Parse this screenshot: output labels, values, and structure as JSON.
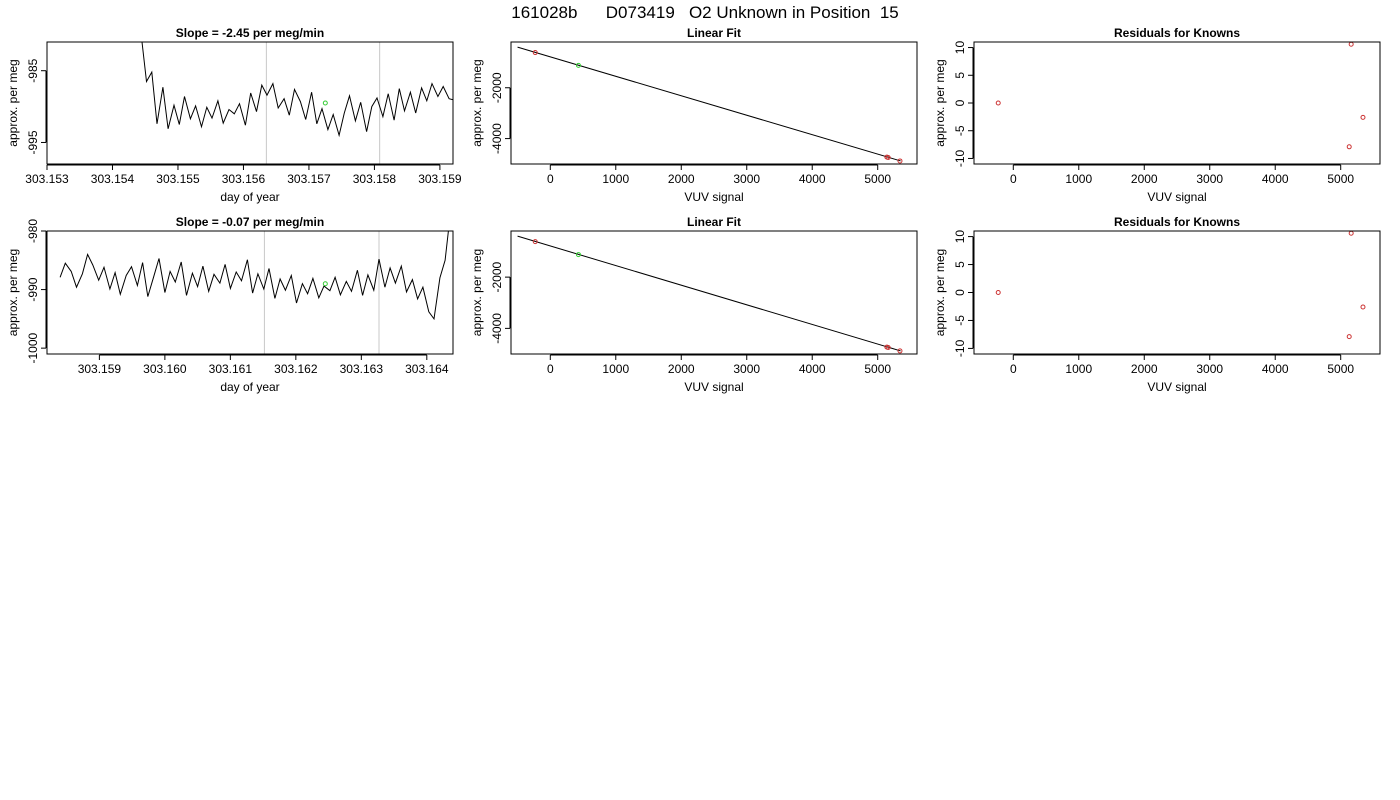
{
  "page_title": "161028b      D073419   O2 Unknown in Position  15",
  "colors": {
    "line": "#000000",
    "marker_known": "#cc3333",
    "marker_unknown": "#33cc33",
    "vline": "#c8c8c8",
    "fit_line": "#000000"
  },
  "chart_data": [
    {
      "type": "line",
      "title": "Slope =  -2.45  per meg/min",
      "xlabel": "day of year",
      "ylabel": "approx. per meg",
      "xlim": [
        303.153,
        303.1592
      ],
      "ylim": [
        -998,
        -981
      ],
      "xticks": [
        303.153,
        303.154,
        303.155,
        303.156,
        303.157,
        303.158,
        303.159
      ],
      "xtick_labels": [
        "303.153",
        "303.154",
        "303.155",
        "303.156",
        "303.157",
        "303.158",
        "303.159"
      ],
      "yticks": [
        -995,
        -985
      ],
      "ytick_labels": [
        "-995",
        "-985"
      ],
      "vlines": [
        303.15635,
        303.15808
      ],
      "series": [
        {
          "x": [
            303.15445,
            303.15452,
            303.1546,
            303.15468,
            303.15477,
            303.15485,
            303.15494,
            303.15502,
            303.1551,
            303.15519,
            303.15527,
            303.15536,
            303.15544,
            303.15552,
            303.15561,
            303.15569,
            303.15578,
            303.15586,
            303.15594,
            303.15603,
            303.15611,
            303.1562,
            303.15628,
            303.15636,
            303.15645,
            303.15653,
            303.15662,
            303.1567,
            303.15678,
            303.15687,
            303.15695,
            303.15704,
            303.15712,
            303.1572,
            303.15729,
            303.15737,
            303.15746,
            303.15754,
            303.15762,
            303.15771,
            303.15779,
            303.15788,
            303.15796,
            303.15804,
            303.15813,
            303.15821,
            303.1583,
            303.15838,
            303.15846,
            303.15855,
            303.15863,
            303.15872,
            303.1588,
            303.15888,
            303.15897,
            303.15905,
            303.15914,
            303.15922
          ],
          "y": [
            -981.0,
            -986.5,
            -985.2,
            -992.4,
            -987.3,
            -993.1,
            -989.8,
            -992.5,
            -988.6,
            -991.7,
            -989.9,
            -992.8,
            -990.1,
            -991.6,
            -989.2,
            -992.3,
            -990.4,
            -991.0,
            -989.6,
            -992.6,
            -988.1,
            -990.7,
            -987.0,
            -988.4,
            -986.8,
            -990.2,
            -988.9,
            -991.2,
            -987.6,
            -989.3,
            -991.8,
            -988.0,
            -992.4,
            -990.3,
            -993.2,
            -991.1,
            -994.0,
            -990.9,
            -988.5,
            -992.0,
            -989.4,
            -993.5,
            -990.0,
            -988.8,
            -991.4,
            -988.2,
            -991.9,
            -987.5,
            -990.6,
            -988.0,
            -990.9,
            -987.4,
            -989.2,
            -986.8,
            -988.6,
            -987.2,
            -988.9,
            -989.1
          ]
        }
      ],
      "markers": [
        {
          "x": 303.15725,
          "y": -989.5,
          "color": "marker_unknown"
        }
      ]
    },
    {
      "type": "scatter",
      "title": "Linear Fit",
      "xlabel": "VUV signal",
      "ylabel": "approx. per meg",
      "xlim": [
        -600,
        5600
      ],
      "ylim": [
        -5000,
        -200
      ],
      "xticks": [
        0,
        1000,
        2000,
        3000,
        4000,
        5000
      ],
      "xtick_labels": [
        "0",
        "1000",
        "2000",
        "3000",
        "4000",
        "5000"
      ],
      "yticks": [
        -4000,
        -2000
      ],
      "ytick_labels": [
        "-4000",
        "-2000"
      ],
      "fit_line": {
        "x": [
          -500,
          5350
        ],
        "y": [
          -400,
          -4880
        ]
      },
      "points": [
        {
          "x": -230,
          "y": -615,
          "color": "marker_known"
        },
        {
          "x": 430,
          "y": -1120,
          "color": "marker_unknown"
        },
        {
          "x": 5140,
          "y": -4730,
          "color": "marker_known"
        },
        {
          "x": 5160,
          "y": -4745,
          "color": "marker_known"
        },
        {
          "x": 5340,
          "y": -4880,
          "color": "marker_known"
        }
      ]
    },
    {
      "type": "scatter",
      "title": "Residuals for Knowns",
      "xlabel": "VUV signal",
      "ylabel": "approx. per meg",
      "xlim": [
        -600,
        5600
      ],
      "ylim": [
        -11,
        11
      ],
      "xticks": [
        0,
        1000,
        2000,
        3000,
        4000,
        5000
      ],
      "xtick_labels": [
        "0",
        "1000",
        "2000",
        "3000",
        "4000",
        "5000"
      ],
      "yticks": [
        -10,
        -5,
        0,
        5,
        10
      ],
      "ytick_labels": [
        "-10",
        "-5",
        "0",
        "5",
        "10"
      ],
      "points": [
        {
          "x": -230,
          "y": 0.0,
          "color": "marker_known"
        },
        {
          "x": 5160,
          "y": 10.6,
          "color": "marker_known"
        },
        {
          "x": 5130,
          "y": -7.9,
          "color": "marker_known"
        },
        {
          "x": 5340,
          "y": -2.6,
          "color": "marker_known"
        }
      ]
    },
    {
      "type": "line",
      "title": "Slope =  -0.07  per meg/min",
      "xlabel": "day of year",
      "ylabel": "approx. per meg",
      "xlim": [
        303.1582,
        303.1644
      ],
      "ylim": [
        -1001,
        -980
      ],
      "xticks": [
        303.159,
        303.16,
        303.161,
        303.162,
        303.163,
        303.164
      ],
      "xtick_labels": [
        "303.159",
        "303.160",
        "303.161",
        "303.162",
        "303.163",
        "303.164"
      ],
      "yticks": [
        -1000,
        -990,
        -980
      ],
      "ytick_labels": [
        "-1000",
        "-990",
        "-980"
      ],
      "vlines": [
        303.16152,
        303.16327
      ],
      "series": [
        {
          "x": [
            303.1584,
            303.15848,
            303.15857,
            303.15865,
            303.15874,
            303.15882,
            303.1589,
            303.15899,
            303.15907,
            303.15916,
            303.15924,
            303.15932,
            303.15941,
            303.15949,
            303.15958,
            303.15966,
            303.15974,
            303.15983,
            303.15991,
            303.16,
            303.16008,
            303.16016,
            303.16025,
            303.16033,
            303.16042,
            303.1605,
            303.16058,
            303.16067,
            303.16075,
            303.16084,
            303.16092,
            303.161,
            303.16109,
            303.16117,
            303.16126,
            303.16134,
            303.16142,
            303.16151,
            303.16159,
            303.16168,
            303.16176,
            303.16184,
            303.16193,
            303.16201,
            303.1621,
            303.16218,
            303.16226,
            303.16235,
            303.16243,
            303.16252,
            303.1626,
            303.16268,
            303.16277,
            303.16285,
            303.16294,
            303.16302,
            303.1631,
            303.16319,
            303.16327,
            303.16336,
            303.16344,
            303.16352,
            303.16361,
            303.16369,
            303.16378,
            303.16386,
            303.16394,
            303.16403,
            303.16411,
            303.1642,
            303.16428,
            303.16433
          ],
          "y": [
            -987.9,
            -985.5,
            -986.9,
            -989.6,
            -987.3,
            -984.0,
            -985.8,
            -988.4,
            -986.2,
            -989.9,
            -987.1,
            -990.8,
            -987.6,
            -986.1,
            -989.3,
            -985.4,
            -991.2,
            -987.8,
            -984.7,
            -990.5,
            -986.9,
            -988.7,
            -985.3,
            -991.0,
            -987.2,
            -989.5,
            -986.0,
            -990.3,
            -987.4,
            -988.9,
            -985.7,
            -989.8,
            -987.0,
            -988.5,
            -984.9,
            -990.6,
            -987.3,
            -989.9,
            -986.4,
            -991.5,
            -988.2,
            -990.1,
            -987.6,
            -992.3,
            -989.0,
            -990.7,
            -988.1,
            -991.4,
            -989.4,
            -990.2,
            -987.9,
            -990.9,
            -988.6,
            -990.3,
            -986.7,
            -991.0,
            -987.5,
            -990.1,
            -984.8,
            -989.6,
            -986.3,
            -988.9,
            -986.0,
            -990.4,
            -988.3,
            -991.6,
            -989.6,
            -993.8,
            -995.0,
            -988.0,
            -985.0,
            -980.0
          ]
        }
      ],
      "markers": [
        {
          "x": 303.16245,
          "y": -989.0,
          "color": "marker_unknown"
        }
      ]
    },
    {
      "type": "scatter",
      "title": "Linear Fit",
      "xlabel": "VUV signal",
      "ylabel": "approx. per meg",
      "xlim": [
        -600,
        5600
      ],
      "ylim": [
        -5000,
        -200
      ],
      "xticks": [
        0,
        1000,
        2000,
        3000,
        4000,
        5000
      ],
      "xtick_labels": [
        "0",
        "1000",
        "2000",
        "3000",
        "4000",
        "5000"
      ],
      "yticks": [
        -4000,
        -2000
      ],
      "ytick_labels": [
        "-4000",
        "-2000"
      ],
      "fit_line": {
        "x": [
          -500,
          5350
        ],
        "y": [
          -400,
          -4880
        ]
      },
      "points": [
        {
          "x": -230,
          "y": -615,
          "color": "marker_known"
        },
        {
          "x": 430,
          "y": -1120,
          "color": "marker_unknown"
        },
        {
          "x": 5140,
          "y": -4730,
          "color": "marker_known"
        },
        {
          "x": 5160,
          "y": -4745,
          "color": "marker_known"
        },
        {
          "x": 5340,
          "y": -4880,
          "color": "marker_known"
        }
      ]
    },
    {
      "type": "scatter",
      "title": "Residuals for Knowns",
      "xlabel": "VUV signal",
      "ylabel": "approx. per meg",
      "xlim": [
        -600,
        5600
      ],
      "ylim": [
        -11,
        11
      ],
      "xticks": [
        0,
        1000,
        2000,
        3000,
        4000,
        5000
      ],
      "xtick_labels": [
        "0",
        "1000",
        "2000",
        "3000",
        "4000",
        "5000"
      ],
      "yticks": [
        -10,
        -5,
        0,
        5,
        10
      ],
      "ytick_labels": [
        "-10",
        "-5",
        "0",
        "5",
        "10"
      ],
      "points": [
        {
          "x": -230,
          "y": 0.0,
          "color": "marker_known"
        },
        {
          "x": 5160,
          "y": 10.6,
          "color": "marker_known"
        },
        {
          "x": 5130,
          "y": -7.9,
          "color": "marker_known"
        },
        {
          "x": 5340,
          "y": -2.6,
          "color": "marker_known"
        }
      ]
    }
  ]
}
